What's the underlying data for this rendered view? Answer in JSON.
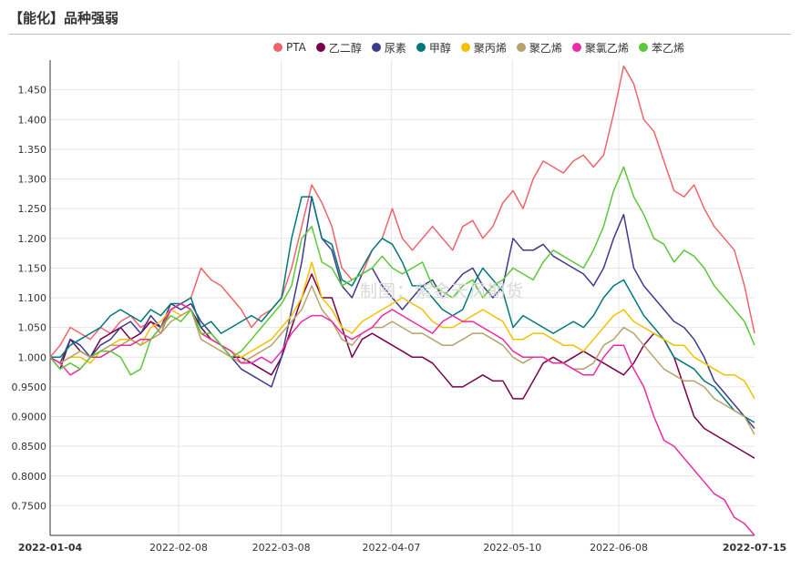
{
  "header": {
    "title": "【能化】品种强弱"
  },
  "watermark": "制图：紫金天风期货",
  "chart_data": {
    "type": "line",
    "title": "",
    "xlabel": "",
    "ylabel": "",
    "ylim": [
      0.7,
      1.5
    ],
    "yticks": [
      "0.7500",
      "0.8000",
      "0.8500",
      "0.9000",
      "0.9500",
      "1.000",
      "1.050",
      "1.100",
      "1.150",
      "1.200",
      "1.250",
      "1.300",
      "1.350",
      "1.400",
      "1.450"
    ],
    "xticks": [
      "2022-01-04",
      "2022-02-08",
      "2022-03-08",
      "2022-04-07",
      "2022-05-10",
      "2022-06-08",
      "2022-07-15"
    ],
    "x_start": "2022-01-04",
    "x_end": "2022-07-15",
    "grid": true,
    "legend_position": "top",
    "series": [
      {
        "name": "PTA",
        "color": "#f0636b",
        "values": [
          1.0,
          1.02,
          1.05,
          1.04,
          1.03,
          1.05,
          1.04,
          1.06,
          1.07,
          1.05,
          1.06,
          1.04,
          1.08,
          1.09,
          1.1,
          1.15,
          1.13,
          1.12,
          1.1,
          1.08,
          1.05,
          1.07,
          1.08,
          1.1,
          1.15,
          1.22,
          1.29,
          1.26,
          1.22,
          1.15,
          1.13,
          1.14,
          1.18,
          1.2,
          1.25,
          1.2,
          1.18,
          1.2,
          1.22,
          1.2,
          1.18,
          1.22,
          1.23,
          1.2,
          1.22,
          1.26,
          1.28,
          1.25,
          1.3,
          1.33,
          1.32,
          1.31,
          1.33,
          1.34,
          1.32,
          1.34,
          1.41,
          1.49,
          1.46,
          1.4,
          1.38,
          1.33,
          1.28,
          1.27,
          1.29,
          1.25,
          1.22,
          1.2,
          1.18,
          1.12,
          1.04
        ]
      },
      {
        "name": "乙二醇",
        "color": "#7a004a",
        "values": [
          1.0,
          0.98,
          1.03,
          1.01,
          1.0,
          1.03,
          1.04,
          1.05,
          1.03,
          1.04,
          1.06,
          1.05,
          1.08,
          1.09,
          1.08,
          1.05,
          1.03,
          1.02,
          1.0,
          1.0,
          0.99,
          0.98,
          0.97,
          1.0,
          1.05,
          1.1,
          1.14,
          1.1,
          1.1,
          1.05,
          1.0,
          1.03,
          1.04,
          1.03,
          1.02,
          1.01,
          1.0,
          1.0,
          0.99,
          0.97,
          0.95,
          0.95,
          0.96,
          0.97,
          0.96,
          0.96,
          0.93,
          0.93,
          0.96,
          0.99,
          1.0,
          0.99,
          1.0,
          1.01,
          1.0,
          0.99,
          0.98,
          0.97,
          0.99,
          1.02,
          1.04,
          1.03,
          1.0,
          0.95,
          0.9,
          0.88,
          0.87,
          0.86,
          0.85,
          0.84,
          0.83
        ]
      },
      {
        "name": "尿素",
        "color": "#3e3a8f",
        "values": [
          1.0,
          0.99,
          1.03,
          1.02,
          1.0,
          1.02,
          1.03,
          1.05,
          1.06,
          1.04,
          1.07,
          1.05,
          1.09,
          1.08,
          1.09,
          1.06,
          1.04,
          1.02,
          1.0,
          0.98,
          0.97,
          0.96,
          0.95,
          1.0,
          1.08,
          1.16,
          1.27,
          1.2,
          1.18,
          1.12,
          1.1,
          1.14,
          1.15,
          1.12,
          1.1,
          1.08,
          1.1,
          1.12,
          1.13,
          1.1,
          1.12,
          1.14,
          1.15,
          1.12,
          1.1,
          1.12,
          1.2,
          1.18,
          1.18,
          1.19,
          1.17,
          1.16,
          1.15,
          1.14,
          1.12,
          1.15,
          1.2,
          1.24,
          1.15,
          1.12,
          1.1,
          1.08,
          1.06,
          1.05,
          1.03,
          1.0,
          0.96,
          0.94,
          0.92,
          0.9,
          0.88
        ]
      },
      {
        "name": "甲醇",
        "color": "#00787a",
        "values": [
          1.0,
          1.0,
          1.02,
          1.03,
          1.04,
          1.05,
          1.07,
          1.08,
          1.07,
          1.06,
          1.08,
          1.07,
          1.09,
          1.09,
          1.1,
          1.05,
          1.06,
          1.04,
          1.05,
          1.06,
          1.07,
          1.06,
          1.08,
          1.1,
          1.2,
          1.27,
          1.27,
          1.2,
          1.19,
          1.13,
          1.12,
          1.15,
          1.18,
          1.2,
          1.19,
          1.16,
          1.12,
          1.12,
          1.1,
          1.08,
          1.07,
          1.08,
          1.12,
          1.15,
          1.13,
          1.11,
          1.05,
          1.07,
          1.06,
          1.05,
          1.04,
          1.05,
          1.06,
          1.05,
          1.07,
          1.1,
          1.12,
          1.13,
          1.1,
          1.07,
          1.05,
          1.03,
          1.0,
          0.99,
          0.98,
          0.96,
          0.95,
          0.93,
          0.91,
          0.9,
          0.89
        ]
      },
      {
        "name": "聚丙烯",
        "color": "#f5c000",
        "values": [
          1.0,
          0.99,
          1.0,
          1.0,
          0.99,
          1.01,
          1.02,
          1.03,
          1.03,
          1.02,
          1.05,
          1.06,
          1.08,
          1.07,
          1.08,
          1.04,
          1.03,
          1.02,
          1.01,
          1.0,
          1.01,
          1.02,
          1.03,
          1.05,
          1.07,
          1.1,
          1.16,
          1.1,
          1.08,
          1.05,
          1.04,
          1.06,
          1.07,
          1.08,
          1.09,
          1.1,
          1.09,
          1.08,
          1.06,
          1.05,
          1.05,
          1.06,
          1.07,
          1.08,
          1.07,
          1.06,
          1.03,
          1.03,
          1.04,
          1.04,
          1.03,
          1.02,
          1.02,
          1.01,
          1.03,
          1.05,
          1.07,
          1.08,
          1.06,
          1.05,
          1.04,
          1.03,
          1.02,
          1.02,
          1.0,
          0.99,
          0.98,
          0.97,
          0.97,
          0.96,
          0.93
        ]
      },
      {
        "name": "聚乙烯",
        "color": "#b8a26a",
        "values": [
          1.0,
          0.99,
          1.0,
          1.01,
          1.0,
          1.01,
          1.02,
          1.02,
          1.03,
          1.02,
          1.03,
          1.04,
          1.06,
          1.07,
          1.08,
          1.03,
          1.02,
          1.01,
          1.0,
          0.99,
          1.0,
          1.01,
          1.02,
          1.04,
          1.06,
          1.08,
          1.12,
          1.08,
          1.06,
          1.03,
          1.02,
          1.04,
          1.05,
          1.05,
          1.06,
          1.05,
          1.04,
          1.04,
          1.03,
          1.02,
          1.02,
          1.03,
          1.04,
          1.04,
          1.03,
          1.02,
          1.0,
          0.99,
          1.0,
          1.0,
          0.99,
          0.99,
          0.98,
          0.98,
          0.99,
          1.02,
          1.03,
          1.05,
          1.04,
          1.02,
          1.0,
          0.98,
          0.97,
          0.96,
          0.96,
          0.95,
          0.93,
          0.92,
          0.91,
          0.9,
          0.87
        ]
      },
      {
        "name": "聚氯乙烯",
        "color": "#ea2ba4",
        "values": [
          1.0,
          0.99,
          0.97,
          0.98,
          1.0,
          1.0,
          1.01,
          1.02,
          1.02,
          1.03,
          1.03,
          1.05,
          1.08,
          1.09,
          1.08,
          1.04,
          1.03,
          1.02,
          1.01,
          0.99,
          0.99,
          1.0,
          0.99,
          1.01,
          1.04,
          1.06,
          1.07,
          1.07,
          1.06,
          1.04,
          1.03,
          1.04,
          1.05,
          1.07,
          1.08,
          1.07,
          1.06,
          1.05,
          1.04,
          1.06,
          1.07,
          1.06,
          1.06,
          1.05,
          1.04,
          1.03,
          1.01,
          1.0,
          1.0,
          1.0,
          0.99,
          0.99,
          0.98,
          0.97,
          0.97,
          1.0,
          1.02,
          1.02,
          0.98,
          0.95,
          0.9,
          0.86,
          0.85,
          0.83,
          0.81,
          0.79,
          0.77,
          0.76,
          0.73,
          0.72,
          0.7
        ]
      },
      {
        "name": "苯乙烯",
        "color": "#5bc936",
        "values": [
          1.0,
          0.98,
          0.99,
          0.98,
          1.0,
          1.01,
          1.01,
          1.0,
          0.97,
          0.98,
          1.03,
          1.05,
          1.07,
          1.06,
          1.08,
          1.04,
          1.04,
          1.02,
          1.0,
          1.01,
          1.03,
          1.05,
          1.07,
          1.09,
          1.12,
          1.2,
          1.22,
          1.16,
          1.15,
          1.12,
          1.13,
          1.14,
          1.15,
          1.17,
          1.15,
          1.14,
          1.15,
          1.16,
          1.12,
          1.11,
          1.1,
          1.12,
          1.13,
          1.1,
          1.12,
          1.13,
          1.15,
          1.14,
          1.13,
          1.16,
          1.18,
          1.17,
          1.16,
          1.15,
          1.18,
          1.22,
          1.28,
          1.32,
          1.27,
          1.24,
          1.2,
          1.19,
          1.16,
          1.18,
          1.17,
          1.15,
          1.12,
          1.1,
          1.08,
          1.06,
          1.02
        ]
      }
    ]
  }
}
